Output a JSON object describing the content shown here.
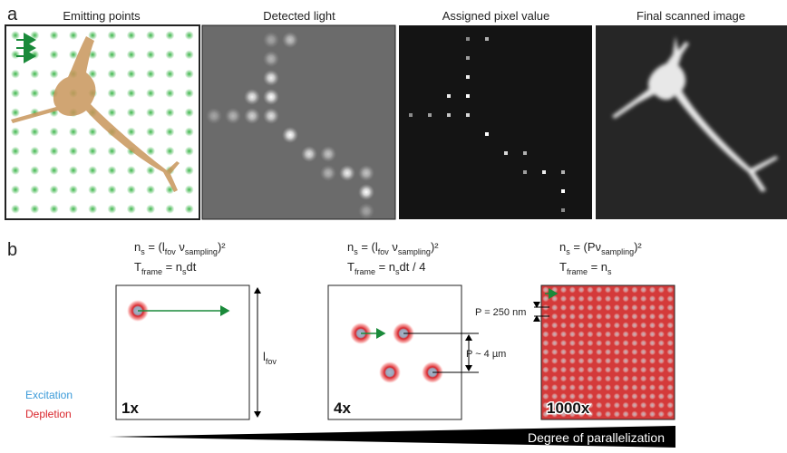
{
  "panel_a": {
    "label": "a",
    "titles": [
      "Emitting points",
      "Detected light",
      "Assigned pixel value",
      "Final scanned image"
    ]
  },
  "panel_b": {
    "label": "b",
    "columns": [
      {
        "ns": [
          "n",
          "s",
          " = (l",
          "fov",
          " ν",
          "sampling",
          ")²"
        ],
        "tframe": [
          "T",
          "frame",
          " = n",
          "s",
          "dt"
        ],
        "factor": "1x"
      },
      {
        "ns": [
          "n",
          "s",
          " = (l",
          "fov",
          " ν",
          "sampling",
          ")²"
        ],
        "tframe": [
          "T",
          "frame",
          " = n",
          "s",
          "dt / 4"
        ],
        "factor": "4x"
      },
      {
        "ns": [
          "n",
          "s",
          " = (Pν",
          "sampling",
          ")²"
        ],
        "tframe": [
          "T",
          "frame",
          " = n",
          "s"
        ],
        "factor": "1000x"
      }
    ],
    "fov_label": [
      "l",
      "fov"
    ],
    "period_small": "P = 250 nm",
    "period_large": "P ~ 4 µm",
    "legend": [
      "Excitation",
      "Depletion"
    ],
    "axis_label": "Degree of parallelization"
  }
}
